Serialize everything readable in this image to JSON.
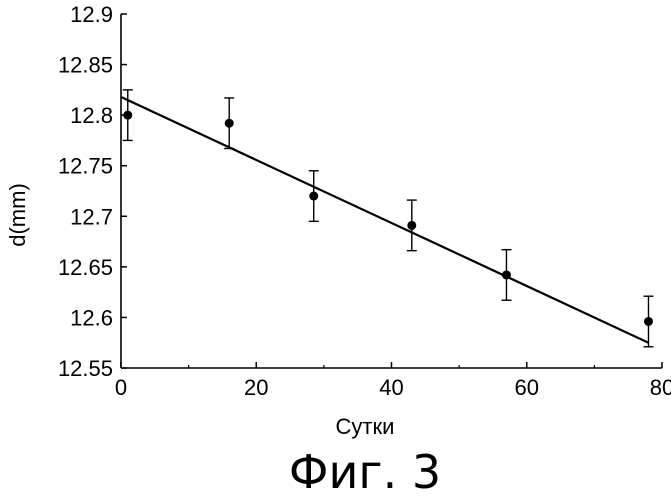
{
  "chart_data": {
    "type": "scatter",
    "title": "",
    "caption": "Фиг. 3",
    "xlabel": "Сутки",
    "ylabel": "d(mm)",
    "xlim": [
      0,
      80
    ],
    "ylim": [
      12.55,
      12.9
    ],
    "x_ticks": [
      "0",
      "20",
      "40",
      "60",
      "80"
    ],
    "y_ticks": [
      "12.55",
      "12.6",
      "12.65",
      "12.7",
      "12.75",
      "12.8",
      "12.85",
      "12.9"
    ],
    "grid": false,
    "legend": "none",
    "points": [
      {
        "x": 1,
        "y": 12.8,
        "err": 0.025
      },
      {
        "x": 16,
        "y": 12.792,
        "err": 0.025
      },
      {
        "x": 28.5,
        "y": 12.72,
        "err": 0.025
      },
      {
        "x": 43,
        "y": 12.691,
        "err": 0.025
      },
      {
        "x": 57,
        "y": 12.642,
        "err": 0.025
      },
      {
        "x": 78,
        "y": 12.596,
        "err": 0.025
      }
    ],
    "fit_line": [
      {
        "x": 0,
        "y": 12.818
      },
      {
        "x": 78,
        "y": 12.575
      }
    ],
    "colors": {
      "marker": "#000000",
      "line": "#000000",
      "axis": "#000000"
    }
  }
}
